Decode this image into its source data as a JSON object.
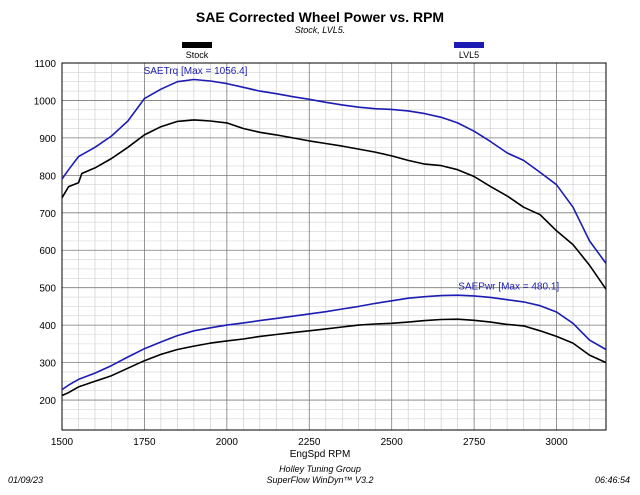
{
  "chart_data": {
    "type": "line",
    "title": "SAE Corrected Wheel Power vs. RPM",
    "subtitle": "Stock, LVL5.",
    "xlabel": "EngSpd RPM",
    "ylabel": "",
    "xlim": [
      1500,
      3150
    ],
    "ylim": [
      120,
      1100
    ],
    "x_ticks": [
      1500,
      1750,
      2000,
      2250,
      2500,
      2750,
      3000
    ],
    "y_ticks": [
      200,
      300,
      400,
      500,
      600,
      700,
      800,
      900,
      1000,
      1100
    ],
    "grid": true,
    "legend": [
      {
        "name": "Stock",
        "color": "#000000"
      },
      {
        "name": "LVL5",
        "color": "#1c1cb4"
      }
    ],
    "annotations": [
      {
        "text": "SAETrq [Max = 1056.4]",
        "x": 1905,
        "y": 1070
      },
      {
        "text": "SAEPwr [Max = 480.1]",
        "x": 2855,
        "y": 495
      }
    ],
    "series": [
      {
        "name": "Stock",
        "metric": "SAETrq",
        "color": "#000000",
        "x": [
          1500,
          1520,
          1550,
          1560,
          1600,
          1650,
          1700,
          1750,
          1800,
          1850,
          1900,
          1950,
          2000,
          2050,
          2100,
          2150,
          2200,
          2250,
          2300,
          2350,
          2400,
          2450,
          2500,
          2550,
          2600,
          2650,
          2700,
          2750,
          2800,
          2850,
          2900,
          2950,
          3000,
          3050,
          3100,
          3150
        ],
        "y": [
          740,
          770,
          780,
          805,
          820,
          845,
          875,
          908,
          930,
          944,
          948,
          945,
          940,
          925,
          915,
          908,
          900,
          892,
          885,
          878,
          870,
          862,
          852,
          840,
          830,
          826,
          815,
          797,
          770,
          745,
          715,
          695,
          652,
          615,
          560,
          496
        ]
      },
      {
        "name": "LVL5",
        "metric": "SAETrq",
        "color": "#1c1cb4",
        "x": [
          1500,
          1520,
          1550,
          1600,
          1650,
          1700,
          1750,
          1800,
          1850,
          1900,
          1950,
          2000,
          2050,
          2100,
          2150,
          2200,
          2250,
          2300,
          2350,
          2400,
          2450,
          2500,
          2550,
          2600,
          2650,
          2700,
          2750,
          2800,
          2850,
          2900,
          2950,
          3000,
          3050,
          3100,
          3150
        ],
        "y": [
          790,
          815,
          850,
          875,
          905,
          945,
          1005,
          1030,
          1050,
          1056,
          1052,
          1045,
          1035,
          1025,
          1018,
          1010,
          1003,
          995,
          988,
          982,
          978,
          976,
          972,
          965,
          955,
          940,
          918,
          890,
          860,
          840,
          808,
          775,
          715,
          625,
          565
        ]
      },
      {
        "name": "Stock",
        "metric": "SAEPwr",
        "color": "#000000",
        "x": [
          1500,
          1520,
          1550,
          1600,
          1650,
          1700,
          1750,
          1800,
          1850,
          1900,
          1950,
          2000,
          2050,
          2100,
          2150,
          2200,
          2250,
          2300,
          2350,
          2400,
          2450,
          2500,
          2550,
          2600,
          2650,
          2700,
          2750,
          2800,
          2850,
          2900,
          2950,
          3000,
          3050,
          3100,
          3150
        ],
        "y": [
          212,
          220,
          235,
          250,
          265,
          285,
          305,
          322,
          335,
          344,
          352,
          358,
          363,
          370,
          375,
          380,
          385,
          390,
          395,
          400,
          403,
          405,
          408,
          412,
          415,
          416,
          413,
          408,
          402,
          398,
          385,
          370,
          352,
          320,
          300
        ]
      },
      {
        "name": "LVL5",
        "metric": "SAEPwr",
        "color": "#1c1cb4",
        "x": [
          1500,
          1520,
          1550,
          1600,
          1650,
          1700,
          1750,
          1800,
          1850,
          1900,
          1950,
          2000,
          2050,
          2100,
          2150,
          2200,
          2250,
          2300,
          2350,
          2400,
          2450,
          2500,
          2550,
          2600,
          2650,
          2700,
          2750,
          2800,
          2850,
          2900,
          2950,
          3000,
          3050,
          3100,
          3150
        ],
        "y": [
          228,
          240,
          255,
          272,
          292,
          315,
          337,
          355,
          372,
          385,
          393,
          400,
          406,
          412,
          418,
          424,
          430,
          436,
          443,
          450,
          458,
          465,
          472,
          476,
          479,
          480,
          478,
          474,
          468,
          462,
          452,
          435,
          405,
          360,
          335
        ]
      }
    ]
  },
  "footer": {
    "date": "01/09/23",
    "time": "06:46:54",
    "company": "Holley Tuning Group",
    "software": "SuperFlow WinDyn™ V3.2"
  }
}
